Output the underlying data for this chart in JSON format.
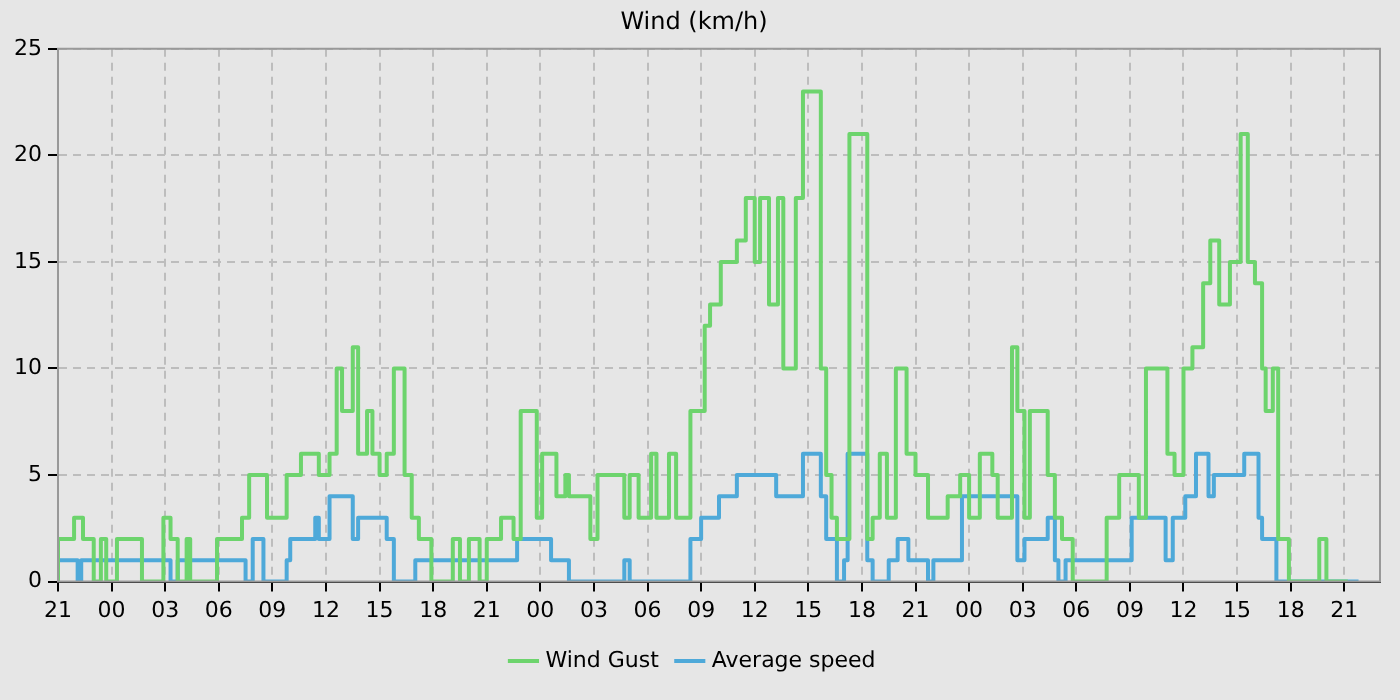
{
  "chart_data": {
    "type": "step",
    "title": "Wind (km/h)",
    "xlim": [
      "--01-01T21:00",
      "--01-04T23:00"
    ],
    "xticks": [
      {
        "value": "--01-01T21:00",
        "label": "21"
      },
      {
        "value": "--01-02T00:00",
        "label": "00"
      },
      {
        "value": "--01-02T03:00",
        "label": "03"
      },
      {
        "value": "--01-02T06:00",
        "label": "06"
      },
      {
        "value": "--01-02T09:00",
        "label": "09"
      },
      {
        "value": "--01-02T12:00",
        "label": "12"
      },
      {
        "value": "--01-02T15:00",
        "label": "15"
      },
      {
        "value": "--01-02T18:00",
        "label": "18"
      },
      {
        "value": "--01-02T21:00",
        "label": "21"
      },
      {
        "value": "--01-03T00:00",
        "label": "00"
      },
      {
        "value": "--01-03T03:00",
        "label": "03"
      },
      {
        "value": "--01-03T06:00",
        "label": "06"
      },
      {
        "value": "--01-03T09:00",
        "label": "09"
      },
      {
        "value": "--01-03T12:00",
        "label": "12"
      },
      {
        "value": "--01-03T15:00",
        "label": "15"
      },
      {
        "value": "--01-03T18:00",
        "label": "18"
      },
      {
        "value": "--01-03T21:00",
        "label": "21"
      },
      {
        "value": "--01-04T00:00",
        "label": "00"
      },
      {
        "value": "--01-04T03:00",
        "label": "03"
      },
      {
        "value": "--01-04T06:00",
        "label": "06"
      },
      {
        "value": "--01-04T09:00",
        "label": "09"
      },
      {
        "value": "--01-04T12:00",
        "label": "12"
      },
      {
        "value": "--01-04T15:00",
        "label": "15"
      },
      {
        "value": "--01-04T18:00",
        "label": "18"
      },
      {
        "value": "--01-04T21:00",
        "label": "21"
      }
    ],
    "ylim": [
      0,
      25
    ],
    "yticks": [
      0,
      5,
      10,
      15,
      20,
      25
    ],
    "grid": true,
    "legend": "bottom",
    "marker": "none",
    "series": [
      {
        "name": "Wind Gust",
        "color": "#6dd46d",
        "x": [
          "--01-01T21:00",
          "--01-01T21:54",
          "--01-01T22:24",
          "--01-01T23:00",
          "--01-01T23:24",
          "--01-01T23:42",
          "--01-02T00:18",
          "--01-02T01:42",
          "--01-02T02:54",
          "--01-02T03:18",
          "--01-02T03:42",
          "--01-02T04:12",
          "--01-02T04:24",
          "--01-02T05:54",
          "--01-02T07:18",
          "--01-02T07:42",
          "--01-02T08:42",
          "--01-02T09:48",
          "--01-02T10:36",
          "--01-02T11:36",
          "--01-02T12:12",
          "--01-02T12:36",
          "--01-02T12:54",
          "--01-02T13:30",
          "--01-02T13:48",
          "--01-02T14:18",
          "--01-02T14:36",
          "--01-02T15:00",
          "--01-02T15:24",
          "--01-02T15:48",
          "--01-02T16:24",
          "--01-02T16:48",
          "--01-02T17:12",
          "--01-02T17:54",
          "--01-02T19:06",
          "--01-02T19:30",
          "--01-02T20:00",
          "--01-02T20:36",
          "--01-02T21:00",
          "--01-02T21:48",
          "--01-02T22:30",
          "--01-02T22:54",
          "--01-02T23:48",
          "--01-03T00:06",
          "--01-03T00:54",
          "--01-03T01:24",
          "--01-03T01:36",
          "--01-03T02:48",
          "--01-03T03:12",
          "--01-03T04:42",
          "--01-03T05:00",
          "--01-03T05:30",
          "--01-03T06:12",
          "--01-03T06:30",
          "--01-03T07:12",
          "--01-03T07:36",
          "--01-03T08:24",
          "--01-03T09:12",
          "--01-03T09:30",
          "--01-03T10:06",
          "--01-03T11:00",
          "--01-03T11:30",
          "--01-03T12:00",
          "--01-03T12:18",
          "--01-03T12:48",
          "--01-03T13:18",
          "--01-03T13:36",
          "--01-03T14:18",
          "--01-03T14:42",
          "--01-03T15:42",
          "--01-03T16:00",
          "--01-03T16:18",
          "--01-03T16:36",
          "--01-03T17:18",
          "--01-03T18:18",
          "--01-03T18:36",
          "--01-03T19:00",
          "--01-03T19:24",
          "--01-03T19:54",
          "--01-03T20:30",
          "--01-03T21:00",
          "--01-03T21:42",
          "--01-03T22:48",
          "--01-03T23:30",
          "--01-04T00:00",
          "--01-04T00:36",
          "--01-04T01:18",
          "--01-04T01:36",
          "--01-04T02:24",
          "--01-04T02:42",
          "--01-04T03:06",
          "--01-04T03:24",
          "--01-04T04:24",
          "--01-04T04:48",
          "--01-04T05:12",
          "--01-04T05:48",
          "--01-04T07:42",
          "--01-04T08:24",
          "--01-04T09:30",
          "--01-04T09:54",
          "--01-04T11:06",
          "--01-04T11:30",
          "--01-04T12:00",
          "--01-04T12:30",
          "--01-04T13:06",
          "--01-04T13:30",
          "--01-04T14:00",
          "--01-04T14:36",
          "--01-04T15:12",
          "--01-04T15:36",
          "--01-04T16:00",
          "--01-04T16:24",
          "--01-04T16:36",
          "--01-04T17:00",
          "--01-04T17:18",
          "--01-04T17:54",
          "--01-04T19:36",
          "--01-04T20:00",
          "--01-04T21:12"
        ],
        "values": [
          0,
          2,
          3,
          2,
          0,
          2,
          0,
          2,
          0,
          3,
          2,
          0,
          2,
          0,
          2,
          3,
          5,
          3,
          5,
          6,
          5,
          6,
          10,
          8,
          11,
          6,
          8,
          6,
          5,
          6,
          10,
          5,
          3,
          2,
          0,
          2,
          0,
          2,
          0,
          2,
          3,
          2,
          8,
          3,
          6,
          4,
          5,
          4,
          2,
          5,
          3,
          5,
          3,
          6,
          3,
          6,
          3,
          8,
          12,
          13,
          15,
          16,
          18,
          15,
          18,
          13,
          18,
          10,
          18,
          23,
          10,
          5,
          3,
          2,
          21,
          2,
          3,
          6,
          3,
          10,
          6,
          5,
          3,
          4,
          5,
          3,
          6,
          5,
          3,
          11,
          8,
          3,
          8,
          5,
          3,
          2,
          0,
          3,
          5,
          3,
          10,
          6,
          5,
          10,
          11,
          14,
          16,
          13,
          15,
          21,
          15,
          14,
          10,
          8,
          10,
          2,
          0,
          2,
          0
        ]
      },
      {
        "name": "Average speed",
        "color": "#4ea9d9",
        "x": [
          "--01-01T21:00",
          "--01-01T22:06",
          "--01-01T22:18",
          "--01-02T03:18",
          "--01-02T03:42",
          "--01-02T07:30",
          "--01-02T07:54",
          "--01-02T08:30",
          "--01-02T09:48",
          "--01-02T10:00",
          "--01-02T11:24",
          "--01-02T11:36",
          "--01-02T12:12",
          "--01-02T13:30",
          "--01-02T13:48",
          "--01-02T15:24",
          "--01-02T15:48",
          "--01-02T17:00",
          "--01-02T22:42",
          "--01-03T00:36",
          "--01-03T01:36",
          "--01-03T04:42",
          "--01-03T05:00",
          "--01-03T08:24",
          "--01-03T09:00",
          "--01-03T10:00",
          "--01-03T11:00",
          "--01-03T13:12",
          "--01-03T14:42",
          "--01-03T15:42",
          "--01-03T16:00",
          "--01-03T16:36",
          "--01-03T17:00",
          "--01-03T17:12",
          "--01-03T18:18",
          "--01-03T18:36",
          "--01-03T19:30",
          "--01-03T20:00",
          "--01-03T20:36",
          "--01-03T21:42",
          "--01-03T22:00",
          "--01-03T23:36",
          "--01-04T02:42",
          "--01-04T03:06",
          "--01-04T04:24",
          "--01-04T04:48",
          "--01-04T05:00",
          "--01-04T05:24",
          "--01-04T09:06",
          "--01-04T11:00",
          "--01-04T11:24",
          "--01-04T12:06",
          "--01-04T12:42",
          "--01-04T13:24",
          "--01-04T13:42",
          "--01-04T15:24",
          "--01-04T16:12",
          "--01-04T16:24",
          "--01-04T17:12",
          "--01-04T17:48",
          "--01-04T21:48"
        ],
        "values": [
          0,
          1,
          0,
          1,
          0,
          1,
          0,
          2,
          0,
          1,
          2,
          3,
          2,
          4,
          2,
          3,
          2,
          0,
          1,
          2,
          1,
          0,
          1,
          0,
          2,
          3,
          4,
          5,
          4,
          6,
          4,
          2,
          0,
          1,
          6,
          1,
          0,
          1,
          2,
          1,
          0,
          1,
          4,
          1,
          2,
          3,
          1,
          0,
          1,
          3,
          1,
          3,
          4,
          6,
          4,
          5,
          6,
          3,
          2,
          0,
          0
        ]
      }
    ]
  }
}
